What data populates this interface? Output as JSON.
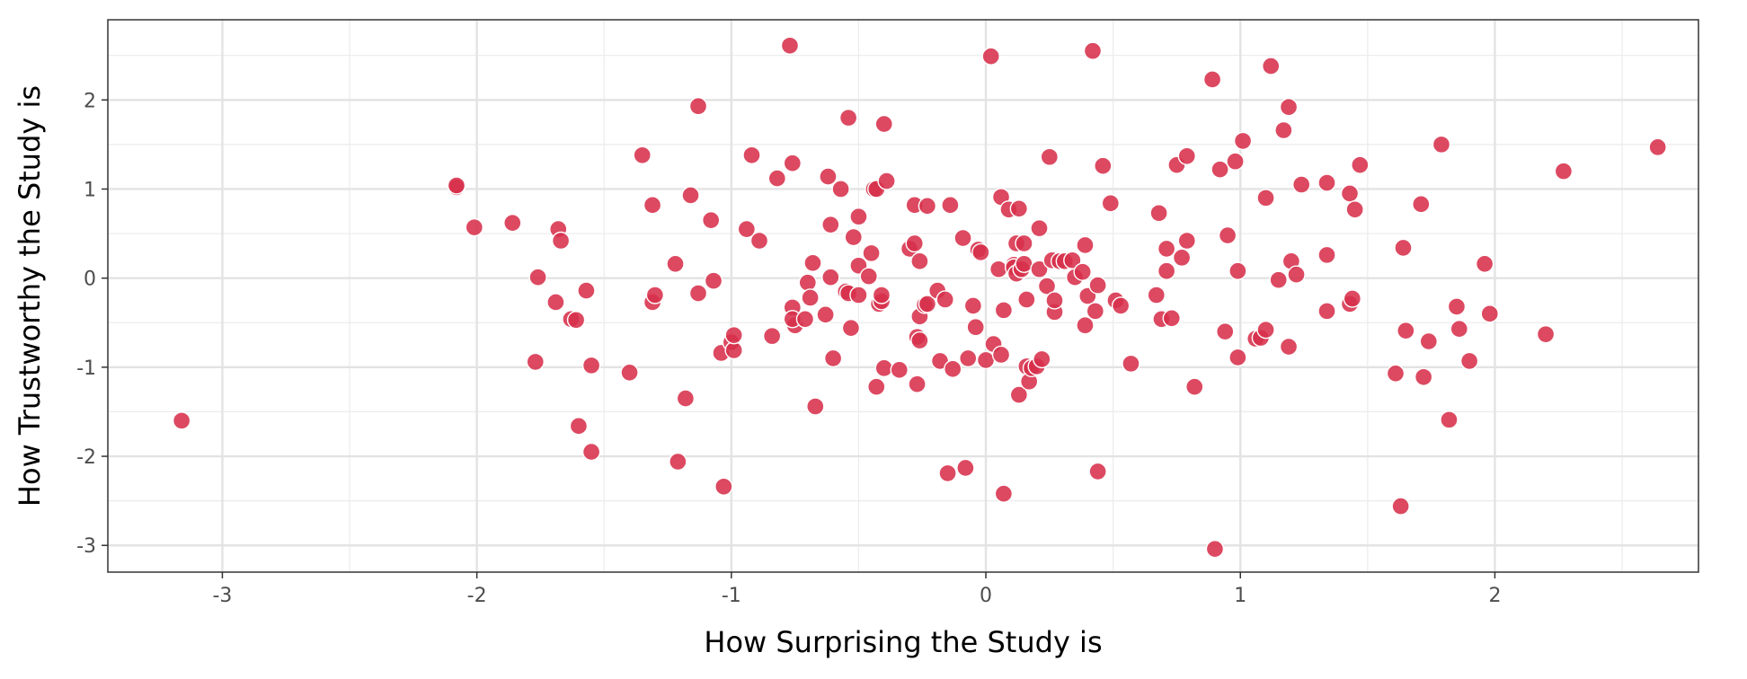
{
  "chart_data": {
    "type": "scatter",
    "xlabel": "How Surprising the Study is",
    "ylabel": "How Trustworthy the Study is",
    "xlim": [
      -3.45,
      2.8
    ],
    "ylim": [
      -3.3,
      2.9
    ],
    "x_ticks": [
      -3,
      -2,
      -1,
      0,
      1,
      2
    ],
    "x_tick_labels": [
      "-3",
      "-2",
      "-1",
      "0",
      "1",
      "2"
    ],
    "y_ticks": [
      -3,
      -2,
      -1,
      0,
      1,
      2
    ],
    "y_tick_labels": [
      "-3",
      "-2",
      "-1",
      "0",
      "1",
      "2"
    ],
    "grid": true,
    "point_color": "#d7304b",
    "points": [
      [
        -3.16,
        -1.6
      ],
      [
        -2.08,
        1.02
      ],
      [
        -2.08,
        1.04
      ],
      [
        -2.01,
        0.57
      ],
      [
        -1.86,
        0.62
      ],
      [
        -1.77,
        -0.94
      ],
      [
        -1.76,
        0.01
      ],
      [
        -1.69,
        -0.27
      ],
      [
        -1.68,
        0.55
      ],
      [
        -1.67,
        0.42
      ],
      [
        -1.63,
        -0.46
      ],
      [
        -1.61,
        -0.47
      ],
      [
        -1.6,
        -1.66
      ],
      [
        -1.57,
        -0.14
      ],
      [
        -1.55,
        -0.98
      ],
      [
        -1.55,
        -1.95
      ],
      [
        -1.4,
        -1.06
      ],
      [
        -1.35,
        1.38
      ],
      [
        -1.31,
        0.82
      ],
      [
        -1.31,
        -0.27
      ],
      [
        -1.3,
        -0.19
      ],
      [
        -1.22,
        0.16
      ],
      [
        -1.21,
        -2.06
      ],
      [
        -1.18,
        -1.35
      ],
      [
        -1.16,
        0.93
      ],
      [
        -1.13,
        1.93
      ],
      [
        -1.13,
        -0.17
      ],
      [
        -1.08,
        0.65
      ],
      [
        -1.07,
        -0.03
      ],
      [
        -1.04,
        -0.84
      ],
      [
        -1.03,
        -2.34
      ],
      [
        -1.0,
        -0.72
      ],
      [
        -0.99,
        -0.81
      ],
      [
        -0.99,
        -0.64
      ],
      [
        -0.94,
        0.55
      ],
      [
        -0.92,
        1.38
      ],
      [
        -0.89,
        0.42
      ],
      [
        -0.84,
        -0.65
      ],
      [
        -0.82,
        1.12
      ],
      [
        -0.77,
        2.61
      ],
      [
        -0.76,
        1.29
      ],
      [
        -0.76,
        -0.33
      ],
      [
        -0.75,
        -0.53
      ],
      [
        -0.76,
        -0.46
      ],
      [
        -0.71,
        -0.46
      ],
      [
        -0.7,
        -0.05
      ],
      [
        -0.69,
        -0.22
      ],
      [
        -0.68,
        0.17
      ],
      [
        -0.67,
        -1.44
      ],
      [
        -0.63,
        -0.41
      ],
      [
        -0.62,
        1.14
      ],
      [
        -0.61,
        0.6
      ],
      [
        -0.61,
        0.01
      ],
      [
        -0.6,
        -0.9
      ],
      [
        -0.57,
        1.0
      ],
      [
        -0.55,
        -0.15
      ],
      [
        -0.54,
        1.8
      ],
      [
        -0.54,
        -0.17
      ],
      [
        -0.53,
        -0.56
      ],
      [
        -0.52,
        0.46
      ],
      [
        -0.5,
        0.69
      ],
      [
        -0.5,
        -0.19
      ],
      [
        -0.5,
        0.14
      ],
      [
        -0.46,
        0.02
      ],
      [
        -0.45,
        0.28
      ],
      [
        -0.44,
        1.0
      ],
      [
        -0.43,
        1.0
      ],
      [
        -0.43,
        -1.22
      ],
      [
        -0.42,
        -0.29
      ],
      [
        -0.41,
        -0.26
      ],
      [
        -0.41,
        -0.19
      ],
      [
        -0.4,
        1.73
      ],
      [
        -0.4,
        -1.01
      ],
      [
        -0.39,
        1.09
      ],
      [
        -0.34,
        -1.03
      ],
      [
        -0.3,
        0.33
      ],
      [
        -0.28,
        0.39
      ],
      [
        -0.28,
        0.82
      ],
      [
        -0.27,
        -0.66
      ],
      [
        -0.27,
        -1.19
      ],
      [
        -0.26,
        -0.43
      ],
      [
        -0.26,
        0.19
      ],
      [
        -0.26,
        -0.7
      ],
      [
        -0.24,
        -0.3
      ],
      [
        -0.23,
        0.81
      ],
      [
        -0.23,
        -0.29
      ],
      [
        -0.19,
        -0.14
      ],
      [
        -0.18,
        -0.93
      ],
      [
        -0.16,
        -0.24
      ],
      [
        -0.15,
        -2.19
      ],
      [
        -0.14,
        0.82
      ],
      [
        -0.13,
        -1.02
      ],
      [
        -0.09,
        0.45
      ],
      [
        -0.08,
        -2.13
      ],
      [
        -0.07,
        -0.9
      ],
      [
        -0.05,
        -0.31
      ],
      [
        -0.04,
        -0.55
      ],
      [
        -0.03,
        0.32
      ],
      [
        -0.02,
        0.29
      ],
      [
        0.0,
        -0.92
      ],
      [
        0.02,
        2.49
      ],
      [
        0.03,
        -0.74
      ],
      [
        0.05,
        0.1
      ],
      [
        0.06,
        0.91
      ],
      [
        0.06,
        -0.86
      ],
      [
        0.07,
        -2.42
      ],
      [
        0.07,
        -0.36
      ],
      [
        0.09,
        0.77
      ],
      [
        0.11,
        0.15
      ],
      [
        0.11,
        0.12
      ],
      [
        0.12,
        0.39
      ],
      [
        0.12,
        0.05
      ],
      [
        0.13,
        0.78
      ],
      [
        0.13,
        -1.31
      ],
      [
        0.14,
        0.1
      ],
      [
        0.15,
        0.39
      ],
      [
        0.15,
        0.16
      ],
      [
        0.16,
        -0.24
      ],
      [
        0.16,
        -0.99
      ],
      [
        0.17,
        -1.16
      ],
      [
        0.18,
        -1.01
      ],
      [
        0.2,
        -0.99
      ],
      [
        0.21,
        0.56
      ],
      [
        0.21,
        0.1
      ],
      [
        0.22,
        -0.91
      ],
      [
        0.24,
        -0.09
      ],
      [
        0.25,
        1.36
      ],
      [
        0.26,
        0.2
      ],
      [
        0.27,
        -0.38
      ],
      [
        0.27,
        -0.25
      ],
      [
        0.29,
        0.19
      ],
      [
        0.31,
        0.19
      ],
      [
        0.34,
        0.2
      ],
      [
        0.35,
        0.01
      ],
      [
        0.38,
        0.07
      ],
      [
        0.39,
        0.37
      ],
      [
        0.39,
        -0.53
      ],
      [
        0.4,
        -0.2
      ],
      [
        0.42,
        2.55
      ],
      [
        0.43,
        -0.37
      ],
      [
        0.44,
        -0.08
      ],
      [
        0.44,
        -2.17
      ],
      [
        0.46,
        1.26
      ],
      [
        0.49,
        0.84
      ],
      [
        0.51,
        -0.25
      ],
      [
        0.53,
        -0.31
      ],
      [
        0.57,
        -0.96
      ],
      [
        0.67,
        -0.19
      ],
      [
        0.68,
        0.73
      ],
      [
        0.69,
        -0.46
      ],
      [
        0.71,
        0.33
      ],
      [
        0.71,
        0.08
      ],
      [
        0.73,
        -0.45
      ],
      [
        0.75,
        1.27
      ],
      [
        0.77,
        0.23
      ],
      [
        0.79,
        0.42
      ],
      [
        0.79,
        1.37
      ],
      [
        0.82,
        -1.22
      ],
      [
        0.89,
        2.23
      ],
      [
        0.9,
        -3.04
      ],
      [
        0.92,
        1.22
      ],
      [
        0.94,
        -0.6
      ],
      [
        0.95,
        0.48
      ],
      [
        0.98,
        1.31
      ],
      [
        0.99,
        -0.89
      ],
      [
        0.99,
        0.08
      ],
      [
        1.01,
        1.54
      ],
      [
        1.06,
        -0.68
      ],
      [
        1.08,
        -0.67
      ],
      [
        1.1,
        -0.58
      ],
      [
        1.1,
        0.9
      ],
      [
        1.12,
        2.38
      ],
      [
        1.15,
        -0.02
      ],
      [
        1.17,
        1.66
      ],
      [
        1.19,
        1.92
      ],
      [
        1.19,
        -0.77
      ],
      [
        1.2,
        0.19
      ],
      [
        1.22,
        0.04
      ],
      [
        1.24,
        1.05
      ],
      [
        1.34,
        1.07
      ],
      [
        1.34,
        0.26
      ],
      [
        1.34,
        -0.37
      ],
      [
        1.43,
        0.95
      ],
      [
        1.43,
        -0.29
      ],
      [
        1.44,
        -0.23
      ],
      [
        1.45,
        0.77
      ],
      [
        1.47,
        1.27
      ],
      [
        1.61,
        -1.07
      ],
      [
        1.63,
        -2.56
      ],
      [
        1.64,
        0.34
      ],
      [
        1.65,
        -0.59
      ],
      [
        1.71,
        0.83
      ],
      [
        1.72,
        -1.11
      ],
      [
        1.74,
        -0.71
      ],
      [
        1.79,
        1.5
      ],
      [
        1.82,
        -1.59
      ],
      [
        1.85,
        -0.32
      ],
      [
        1.86,
        -0.57
      ],
      [
        1.9,
        -0.93
      ],
      [
        1.96,
        0.16
      ],
      [
        1.98,
        -0.4
      ],
      [
        2.2,
        -0.63
      ],
      [
        2.27,
        1.2
      ],
      [
        2.64,
        1.47
      ]
    ]
  }
}
